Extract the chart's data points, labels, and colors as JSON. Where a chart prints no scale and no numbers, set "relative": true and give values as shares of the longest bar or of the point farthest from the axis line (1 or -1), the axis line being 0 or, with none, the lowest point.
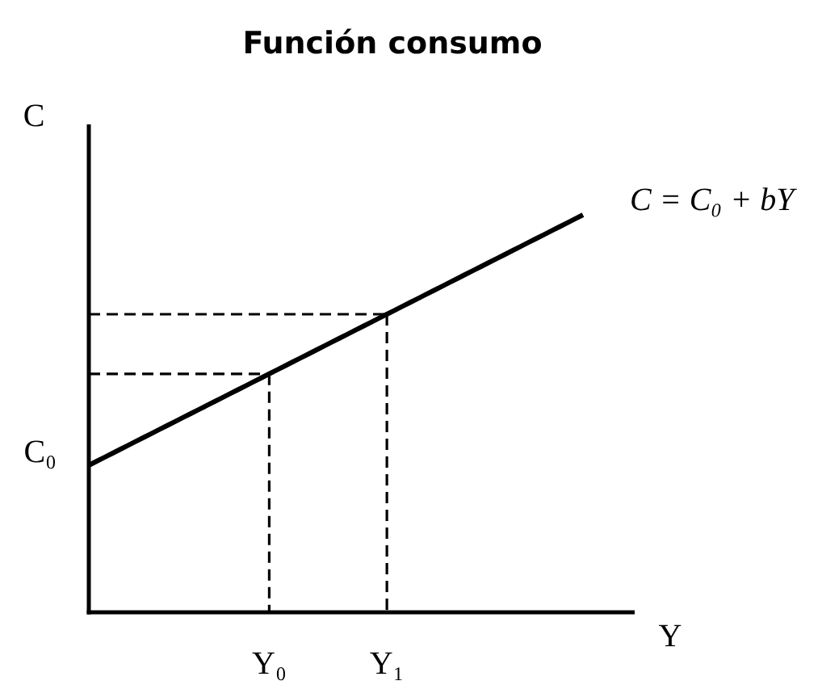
{
  "chart_data": {
    "type": "line",
    "title": "Función consumo",
    "xlabel": "Y",
    "ylabel": "C",
    "relative": true,
    "categories": [
      null,
      null,
      null,
      null,
      null,
      null,
      null,
      null,
      null,
      null,
      null,
      null,
      null,
      null,
      null,
      null,
      null,
      null,
      null,
      null,
      null,
      null,
      null,
      "Y₀",
      null,
      null,
      null,
      null,
      null,
      null,
      null,
      null,
      null,
      null,
      null,
      null,
      null,
      null,
      "Y₁",
      null,
      null,
      null,
      null,
      null,
      null,
      null,
      null,
      null,
      null,
      null,
      null,
      null,
      null,
      null,
      null,
      null,
      null,
      null,
      null,
      null,
      null,
      null,
      null,
      null
    ],
    "series": [
      {
        "name": "C = C₀ + bY",
        "color": "#000000",
        "values": [
          0.37,
          0.38,
          0.39,
          0.4,
          0.41,
          0.42,
          0.43,
          0.44,
          0.45,
          0.46,
          0.47,
          0.48,
          0.49,
          0.5,
          0.51,
          0.52,
          0.53,
          0.54,
          0.55,
          0.56,
          0.57,
          0.58,
          0.59,
          0.6,
          0.61,
          0.62,
          0.63,
          0.64,
          0.65,
          0.66,
          0.67,
          0.68,
          0.69,
          0.7,
          0.71,
          0.72,
          0.73,
          0.74,
          0.75,
          0.76,
          0.77,
          0.78,
          0.79,
          0.8,
          0.81,
          0.82,
          0.83,
          0.84,
          0.85,
          0.86,
          0.87,
          0.88,
          0.89,
          0.9,
          0.91,
          0.92,
          0.93,
          0.94,
          0.95,
          0.96,
          0.97,
          0.98,
          0.99,
          1
        ]
      },
      {
        "color": "#000000",
        "line_style": "dashed",
        "values": [
          0.6,
          0.6,
          0.6,
          0.6,
          0.6,
          0.6,
          0.6,
          0.6,
          0.6,
          0.6,
          0.6,
          0.6,
          0.6,
          0.6,
          0.6,
          0.6,
          0.6,
          0.6,
          0.6,
          0.6,
          0.6,
          0.6,
          0.6,
          0.6,
          null,
          null,
          null,
          null,
          null,
          null,
          null,
          null,
          null,
          null,
          null,
          null,
          null,
          null,
          null,
          null,
          null,
          null,
          null,
          null,
          null,
          null,
          null,
          null,
          null,
          null,
          null,
          null,
          null,
          null,
          null,
          null,
          null,
          null,
          null,
          null,
          null,
          null,
          null,
          null
        ]
      },
      {
        "color": "#000000",
        "line_style": "dashed",
        "x": [
          "Y₀",
          "Y₀"
        ],
        "values": [
          0.6,
          0
        ]
      },
      {
        "color": "#000000",
        "line_style": "dashed",
        "values": [
          0.75,
          0.75,
          0.75,
          0.75,
          0.75,
          0.75,
          0.75,
          0.75,
          0.75,
          0.75,
          0.75,
          0.75,
          0.75,
          0.75,
          0.75,
          0.75,
          0.75,
          0.75,
          0.75,
          0.75,
          0.75,
          0.75,
          0.75,
          0.75,
          0.75,
          0.75,
          0.75,
          0.75,
          0.75,
          0.75,
          0.75,
          0.75,
          0.75,
          0.75,
          0.75,
          0.75,
          0.75,
          0.75,
          0.75,
          null,
          null,
          null,
          null,
          null,
          null,
          null,
          null,
          null,
          null,
          null,
          null,
          null,
          null,
          null,
          null,
          null,
          null,
          null,
          null,
          null,
          null,
          null,
          null,
          null
        ]
      },
      {
        "color": "#000000",
        "line_style": "dashed",
        "x": [
          "Y₁",
          "Y₁"
        ],
        "values": [
          0.75,
          0
        ]
      }
    ],
    "annotations": [
      "C₀"
    ]
  }
}
